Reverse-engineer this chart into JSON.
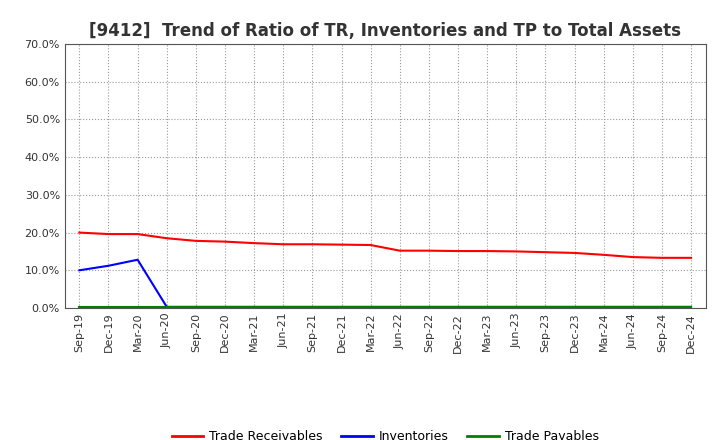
{
  "title": "[9412]  Trend of Ratio of TR, Inventories and TP to Total Assets",
  "x_labels": [
    "Sep-19",
    "Dec-19",
    "Mar-20",
    "Jun-20",
    "Sep-20",
    "Dec-20",
    "Mar-21",
    "Jun-21",
    "Sep-21",
    "Dec-21",
    "Mar-22",
    "Jun-22",
    "Sep-22",
    "Dec-22",
    "Mar-23",
    "Jun-23",
    "Sep-23",
    "Dec-23",
    "Mar-24",
    "Jun-24",
    "Sep-24",
    "Dec-24"
  ],
  "trade_receivables": [
    0.2,
    0.196,
    0.196,
    0.185,
    0.178,
    0.176,
    0.172,
    0.169,
    0.169,
    0.168,
    0.167,
    0.152,
    0.152,
    0.151,
    0.151,
    0.15,
    0.148,
    0.146,
    0.141,
    0.135,
    0.133,
    0.133
  ],
  "inventories": [
    0.1,
    0.112,
    0.128,
    0.003,
    0.003,
    0.003,
    0.003,
    0.003,
    0.003,
    0.003,
    0.003,
    0.003,
    0.003,
    0.003,
    0.003,
    0.003,
    0.003,
    0.003,
    0.003,
    0.003,
    0.003,
    0.003
  ],
  "trade_payables": [
    0.002,
    0.002,
    0.002,
    0.002,
    0.002,
    0.002,
    0.002,
    0.002,
    0.002,
    0.002,
    0.002,
    0.002,
    0.002,
    0.002,
    0.002,
    0.002,
    0.002,
    0.002,
    0.002,
    0.002,
    0.002,
    0.002
  ],
  "tr_color": "#FF0000",
  "inv_color": "#0000FF",
  "tp_color": "#008000",
  "ylim": [
    0.0,
    0.7
  ],
  "yticks": [
    0.0,
    0.1,
    0.2,
    0.3,
    0.4,
    0.5,
    0.6,
    0.7
  ],
  "bg_color": "#FFFFFF",
  "grid_color": "#999999",
  "legend_labels": [
    "Trade Receivables",
    "Inventories",
    "Trade Payables"
  ],
  "title_fontsize": 12,
  "tick_fontsize": 8,
  "legend_fontsize": 9
}
